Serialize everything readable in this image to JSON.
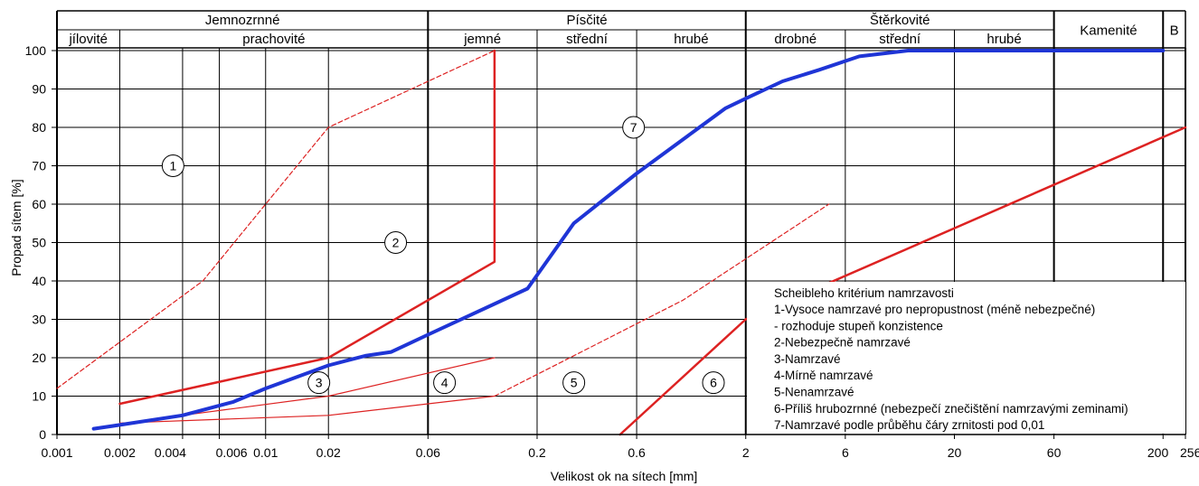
{
  "chart_data": {
    "type": "line",
    "xlabel": "Velikost ok na sítech [mm]",
    "ylabel": "Propad sítem [%]",
    "x_scale": "log",
    "xlim": [
      0.001,
      256
    ],
    "ylim": [
      0,
      100
    ],
    "x_ticks": [
      {
        "value": 0.001,
        "label": "0.001"
      },
      {
        "value": 0.002,
        "label": "0.002"
      },
      {
        "value": 0.004,
        "label": "0.004"
      },
      {
        "value": 0.006,
        "label": "0.006"
      },
      {
        "value": 0.01,
        "label": "0.01"
      },
      {
        "value": 0.02,
        "label": "0.02"
      },
      {
        "value": 0.06,
        "label": "0.06"
      },
      {
        "value": 0.2,
        "label": "0.2"
      },
      {
        "value": 0.6,
        "label": "0.6"
      },
      {
        "value": 2,
        "label": "2"
      },
      {
        "value": 6,
        "label": "6"
      },
      {
        "value": 20,
        "label": "20"
      },
      {
        "value": 60,
        "label": "60"
      },
      {
        "value": 200,
        "label": "200"
      },
      {
        "value": 256,
        "label": "256"
      }
    ],
    "y_ticks": [
      0,
      10,
      20,
      30,
      40,
      50,
      60,
      70,
      80,
      90,
      100
    ],
    "fraction_header": {
      "top": [
        {
          "label": "Jemnozrnné",
          "from": 0.001,
          "to": 0.06
        },
        {
          "label": "Písčité",
          "from": 0.06,
          "to": 2
        },
        {
          "label": "Štěrkovité",
          "from": 2,
          "to": 60
        },
        {
          "label": "Kamenité",
          "from": 60,
          "to": 200
        },
        {
          "label": "B",
          "from": 200,
          "to": 256
        }
      ],
      "sub": [
        {
          "label": "jílovité",
          "from": 0.001,
          "to": 0.002
        },
        {
          "label": "prachovité",
          "from": 0.002,
          "to": 0.06
        },
        {
          "label": "jemné",
          "from": 0.06,
          "to": 0.2
        },
        {
          "label": "střední",
          "from": 0.2,
          "to": 0.6
        },
        {
          "label": "hrubé",
          "from": 0.6,
          "to": 2
        },
        {
          "label": "drobné",
          "from": 2,
          "to": 6
        },
        {
          "label": "střední",
          "from": 6,
          "to": 20
        },
        {
          "label": "hrubé",
          "from": 20,
          "to": 60
        }
      ]
    },
    "series": [
      {
        "color": "#dd2222",
        "style": "dashed",
        "width": 1.2,
        "points": [
          [
            0.001,
            12
          ],
          [
            0.005,
            40
          ],
          [
            0.02,
            80
          ],
          [
            0.125,
            100
          ]
        ]
      },
      {
        "color": "#dd2222",
        "style": "solid",
        "width": 2.5,
        "points": [
          [
            0.002,
            8
          ],
          [
            0.02,
            20
          ],
          [
            0.125,
            45
          ],
          [
            0.125,
            100
          ]
        ]
      },
      {
        "color": "#dd2222",
        "style": "solid",
        "width": 1.2,
        "points": [
          [
            0.0015,
            1.5
          ],
          [
            0.004,
            5
          ],
          [
            0.02,
            10
          ],
          [
            0.125,
            20
          ]
        ]
      },
      {
        "color": "#dd2222",
        "style": "solid",
        "width": 1.2,
        "points": [
          [
            0.002,
            3
          ],
          [
            0.02,
            5
          ],
          [
            0.125,
            10
          ]
        ]
      },
      {
        "color": "#dd2222",
        "style": "dashed",
        "width": 1.2,
        "points": [
          [
            0.125,
            10
          ],
          [
            1,
            35
          ],
          [
            5,
            60
          ]
        ]
      },
      {
        "color": "#dd2222",
        "style": "solid",
        "width": 2.5,
        "points": [
          [
            0.5,
            0
          ],
          [
            2,
            30
          ]
        ]
      },
      {
        "color": "#dd2222",
        "style": "solid",
        "width": 2.5,
        "points": [
          [
            2,
            30
          ],
          [
            256,
            80
          ]
        ]
      },
      {
        "color": "#1f35d6",
        "style": "solid",
        "width": 4,
        "points": [
          [
            0.0015,
            1.5
          ],
          [
            0.002,
            2.5
          ],
          [
            0.004,
            5
          ],
          [
            0.007,
            8.5
          ],
          [
            0.01,
            12
          ],
          [
            0.02,
            18
          ],
          [
            0.03,
            20.5
          ],
          [
            0.04,
            21.5
          ],
          [
            0.06,
            26
          ],
          [
            0.18,
            38
          ],
          [
            0.3,
            55
          ],
          [
            0.6,
            68
          ],
          [
            1.2,
            80
          ],
          [
            1.6,
            85
          ],
          [
            2,
            87.5
          ],
          [
            3,
            92
          ],
          [
            4.5,
            95
          ],
          [
            7,
            98.5
          ],
          [
            12,
            100
          ],
          [
            200,
            100
          ]
        ]
      }
    ],
    "circle_labels": [
      {
        "text": "1",
        "x": 0.0036,
        "y": 70
      },
      {
        "text": "2",
        "x": 0.042,
        "y": 50
      },
      {
        "text": "3",
        "x": 0.018,
        "y": 13.5
      },
      {
        "text": "4",
        "x": 0.072,
        "y": 13.5
      },
      {
        "text": "5",
        "x": 0.3,
        "y": 13.5
      },
      {
        "text": "6",
        "x": 1.4,
        "y": 13.5
      },
      {
        "text": "7",
        "x": 0.58,
        "y": 80
      }
    ],
    "legend": {
      "title": "Scheibleho kritérium namrzavosti",
      "items": [
        "1-Vysoce namrzavé pro nepropustnost (méně nebezpečné)",
        "  - rozhoduje stupeň konzistence",
        "2-Nebezpečně namrzavé",
        "3-Namrzavé",
        "4-Mírně namrzavé",
        "5-Nenamrzavé",
        "6-Příliš hrubozrnné (nebezpečí znečištění namrzavými zeminami)",
        "7-Namrzavé podle průběhu čáry zrnitosti pod 0,01"
      ]
    }
  }
}
